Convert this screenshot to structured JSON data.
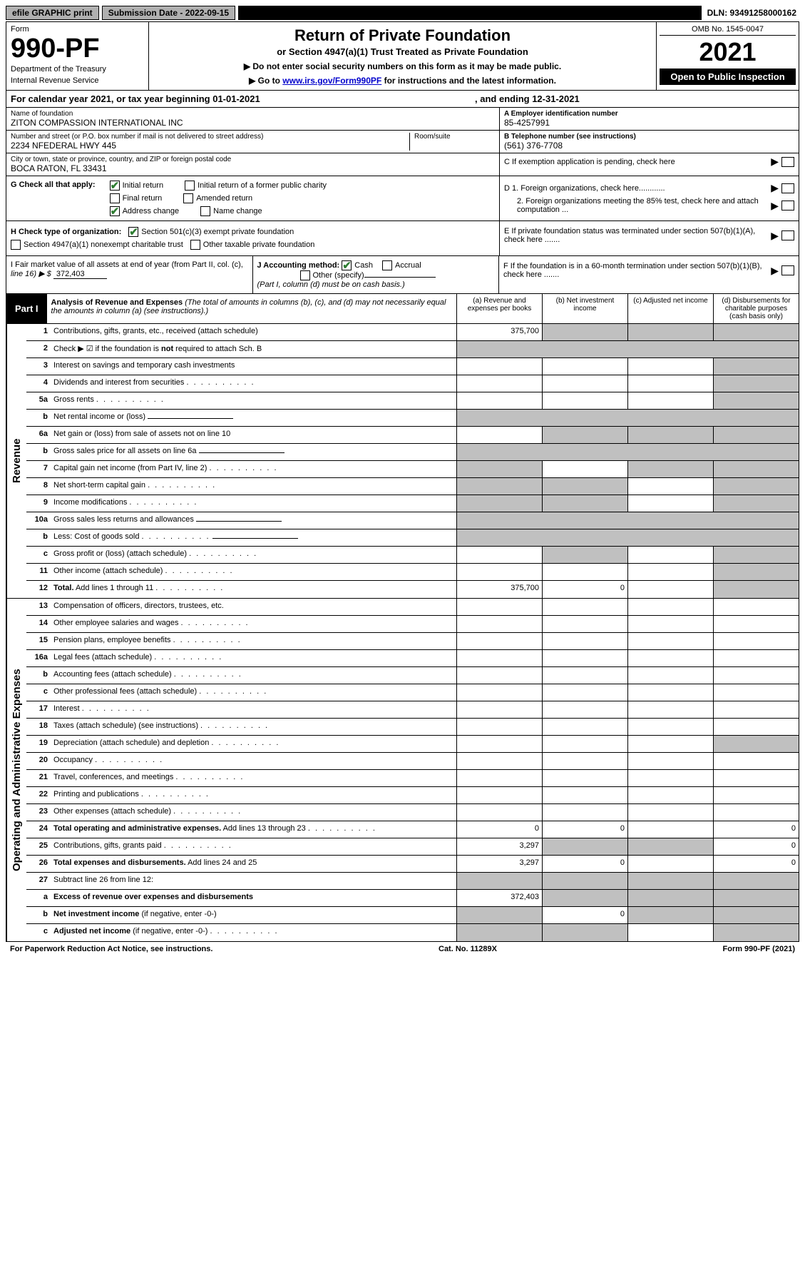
{
  "top_bar": {
    "efile_btn": "efile GRAPHIC print",
    "sub_date_label": "Submission Date - 2022-09-15",
    "dln": "DLN: 93491258000162"
  },
  "header": {
    "form_label": "Form",
    "form_number": "990-PF",
    "dept": "Department of the Treasury",
    "irs": "Internal Revenue Service",
    "title": "Return of Private Foundation",
    "subtitle": "or Section 4947(a)(1) Trust Treated as Private Foundation",
    "note1": "▶ Do not enter social security numbers on this form as it may be made public.",
    "note2_prefix": "▶ Go to ",
    "note2_link": "www.irs.gov/Form990PF",
    "note2_suffix": " for instructions and the latest information.",
    "omb": "OMB No. 1545-0047",
    "year": "2021",
    "open_pub": "Open to Public Inspection"
  },
  "cal_year": {
    "prefix": "For calendar year 2021, or tax year beginning 01-01-2021",
    "suffix": ", and ending 12-31-2021"
  },
  "entity": {
    "name_label": "Name of foundation",
    "name": "ZITON COMPASSION INTERNATIONAL INC",
    "addr_label": "Number and street (or P.O. box number if mail is not delivered to street address)",
    "addr": "2234 NFEDERAL HWY 445",
    "room_label": "Room/suite",
    "city_label": "City or town, state or province, country, and ZIP or foreign postal code",
    "city": "BOCA RATON, FL  33431",
    "ein_label": "A Employer identification number",
    "ein": "85-4257991",
    "phone_label": "B Telephone number (see instructions)",
    "phone": "(561) 376-7708",
    "c_label": "C If exemption application is pending, check here"
  },
  "section_g": {
    "label": "G Check all that apply:",
    "initial": "Initial return",
    "initial_former": "Initial return of a former public charity",
    "final": "Final return",
    "amended": "Amended return",
    "addr_change": "Address change",
    "name_change": "Name change"
  },
  "section_de": {
    "d1": "D 1. Foreign organizations, check here............",
    "d2": "2. Foreign organizations meeting the 85% test, check here and attach computation ...",
    "e": "E  If private foundation status was terminated under section 507(b)(1)(A), check here .......",
    "f": "F  If the foundation is in a 60-month termination under section 507(b)(1)(B), check here ......."
  },
  "section_h": {
    "label": "H Check type of organization:",
    "opt1": "Section 501(c)(3) exempt private foundation",
    "opt2": "Section 4947(a)(1) nonexempt charitable trust",
    "opt3": "Other taxable private foundation"
  },
  "section_i": {
    "label": "I Fair market value of all assets at end of year (from Part II, col. (c),",
    "line": "line 16) ▶ $",
    "value": "372,403"
  },
  "section_j": {
    "label": "J Accounting method:",
    "cash": "Cash",
    "accrual": "Accrual",
    "other": "Other (specify)",
    "note": "(Part I, column (d) must be on cash basis.)"
  },
  "part1": {
    "label": "Part I",
    "title": "Analysis of Revenue and Expenses",
    "desc": "(The total of amounts in columns (b), (c), and (d) may not necessarily equal the amounts in column (a) (see instructions).)",
    "col_a": "(a)   Revenue and expenses per books",
    "col_b": "(b)   Net investment income",
    "col_c": "(c)   Adjusted net income",
    "col_d": "(d)   Disbursements for charitable purposes (cash basis only)"
  },
  "vert_revenue": "Revenue",
  "vert_expenses": "Operating and Administrative Expenses",
  "rows": [
    {
      "n": "1",
      "label": "Contributions, gifts, grants, etc., received (attach schedule)",
      "a": "375,700",
      "b": "",
      "c": "",
      "d": "",
      "shade_bcd": true
    },
    {
      "n": "2",
      "label": "Check ▶ ☑ if the foundation is <b>not</b> required to attach Sch. B",
      "nocells": true
    },
    {
      "n": "3",
      "label": "Interest on savings and temporary cash investments",
      "a": "",
      "b": "",
      "c": "",
      "d": "",
      "shade_d": true
    },
    {
      "n": "4",
      "label": "Dividends and interest from securities",
      "a": "",
      "b": "",
      "c": "",
      "d": "",
      "shade_d": true,
      "dots": true
    },
    {
      "n": "5a",
      "label": "Gross rents",
      "a": "",
      "b": "",
      "c": "",
      "d": "",
      "shade_d": true,
      "dots": true
    },
    {
      "n": "b",
      "label": "Net rental income or (loss)",
      "nocells": true,
      "underline": true
    },
    {
      "n": "6a",
      "label": "Net gain or (loss) from sale of assets not on line 10",
      "a": "",
      "b": "",
      "c": "",
      "d": "",
      "shade_bcd": true
    },
    {
      "n": "b",
      "label": "Gross sales price for all assets on line 6a",
      "nocells": true,
      "underline": true
    },
    {
      "n": "7",
      "label": "Capital gain net income (from Part IV, line 2)",
      "a": "",
      "b": "",
      "c": "",
      "d": "",
      "shade_a": true,
      "shade_cd": true,
      "dots": true
    },
    {
      "n": "8",
      "label": "Net short-term capital gain",
      "a": "",
      "b": "",
      "c": "",
      "d": "",
      "shade_ab": true,
      "shade_d": true,
      "dots": true
    },
    {
      "n": "9",
      "label": "Income modifications",
      "a": "",
      "b": "",
      "c": "",
      "d": "",
      "shade_ab": true,
      "shade_d": true,
      "dots": true
    },
    {
      "n": "10a",
      "label": "Gross sales less returns and allowances",
      "nocells": true,
      "underline": true
    },
    {
      "n": "b",
      "label": "Less: Cost of goods sold",
      "nocells": true,
      "underline": true,
      "dots": true
    },
    {
      "n": "c",
      "label": "Gross profit or (loss) (attach schedule)",
      "a": "",
      "b": "",
      "c": "",
      "d": "",
      "shade_b": true,
      "shade_d": true,
      "dots": true
    },
    {
      "n": "11",
      "label": "Other income (attach schedule)",
      "a": "",
      "b": "",
      "c": "",
      "d": "",
      "shade_d": true,
      "dots": true
    },
    {
      "n": "12",
      "label": "<b>Total.</b> Add lines 1 through 11",
      "a": "375,700",
      "b": "0",
      "c": "",
      "d": "",
      "shade_d": true,
      "dots": true
    }
  ],
  "exp_rows": [
    {
      "n": "13",
      "label": "Compensation of officers, directors, trustees, etc.",
      "a": "",
      "b": "",
      "c": "",
      "d": ""
    },
    {
      "n": "14",
      "label": "Other employee salaries and wages",
      "a": "",
      "b": "",
      "c": "",
      "d": "",
      "dots": true
    },
    {
      "n": "15",
      "label": "Pension plans, employee benefits",
      "a": "",
      "b": "",
      "c": "",
      "d": "",
      "dots": true
    },
    {
      "n": "16a",
      "label": "Legal fees (attach schedule)",
      "a": "",
      "b": "",
      "c": "",
      "d": "",
      "dots": true
    },
    {
      "n": "b",
      "label": "Accounting fees (attach schedule)",
      "a": "",
      "b": "",
      "c": "",
      "d": "",
      "dots": true
    },
    {
      "n": "c",
      "label": "Other professional fees (attach schedule)",
      "a": "",
      "b": "",
      "c": "",
      "d": "",
      "dots": true
    },
    {
      "n": "17",
      "label": "Interest",
      "a": "",
      "b": "",
      "c": "",
      "d": "",
      "dots": true
    },
    {
      "n": "18",
      "label": "Taxes (attach schedule) (see instructions)",
      "a": "",
      "b": "",
      "c": "",
      "d": "",
      "dots": true
    },
    {
      "n": "19",
      "label": "Depreciation (attach schedule) and depletion",
      "a": "",
      "b": "",
      "c": "",
      "d": "",
      "shade_d": true,
      "dots": true
    },
    {
      "n": "20",
      "label": "Occupancy",
      "a": "",
      "b": "",
      "c": "",
      "d": "",
      "dots": true
    },
    {
      "n": "21",
      "label": "Travel, conferences, and meetings",
      "a": "",
      "b": "",
      "c": "",
      "d": "",
      "dots": true
    },
    {
      "n": "22",
      "label": "Printing and publications",
      "a": "",
      "b": "",
      "c": "",
      "d": "",
      "dots": true
    },
    {
      "n": "23",
      "label": "Other expenses (attach schedule)",
      "a": "",
      "b": "",
      "c": "",
      "d": "",
      "dots": true
    },
    {
      "n": "24",
      "label": "<b>Total operating and administrative expenses.</b> Add lines 13 through 23",
      "a": "0",
      "b": "0",
      "c": "",
      "d": "0",
      "dots": true
    },
    {
      "n": "25",
      "label": "Contributions, gifts, grants paid",
      "a": "3,297",
      "b": "",
      "c": "",
      "d": "0",
      "shade_bc": true,
      "dots": true
    },
    {
      "n": "26",
      "label": "<b>Total expenses and disbursements.</b> Add lines 24 and 25",
      "a": "3,297",
      "b": "0",
      "c": "",
      "d": "0"
    },
    {
      "n": "27",
      "label": "Subtract line 26 from line 12:",
      "nocells_shaded": true
    },
    {
      "n": "a",
      "label": "<b>Excess of revenue over expenses and disbursements</b>",
      "a": "372,403",
      "b": "",
      "c": "",
      "d": "",
      "shade_bcd": true
    },
    {
      "n": "b",
      "label": "<b>Net investment income</b> (if negative, enter -0-)",
      "a": "",
      "b": "0",
      "c": "",
      "d": "",
      "shade_a": true,
      "shade_cd": true
    },
    {
      "n": "c",
      "label": "<b>Adjusted net income</b> (if negative, enter -0-)",
      "a": "",
      "b": "",
      "c": "",
      "d": "",
      "shade_ab": true,
      "shade_d": true,
      "dots": true
    }
  ],
  "footer": {
    "left": "For Paperwork Reduction Act Notice, see instructions.",
    "mid": "Cat. No. 11289X",
    "right": "Form 990-PF (2021)"
  }
}
